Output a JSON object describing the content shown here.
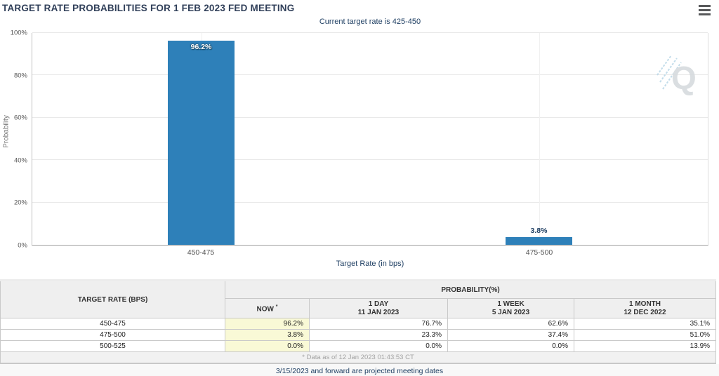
{
  "header": {
    "title": "TARGET RATE PROBABILITIES FOR 1 FEB 2023 FED MEETING"
  },
  "chart": {
    "subtitle": "Current target rate is 425-450",
    "y_axis_label": "Probability",
    "x_axis_label": "Target Rate (in bps)",
    "y_ticks": [
      "0%",
      "20%",
      "40%",
      "60%",
      "80%",
      "100%"
    ],
    "watermark_letter": "Q"
  },
  "chart_data": {
    "type": "bar",
    "title": "TARGET RATE PROBABILITIES FOR 1 FEB 2023 FED MEETING",
    "subtitle": "Current target rate is 425-450",
    "categories": [
      "450-475",
      "475-500"
    ],
    "values": [
      96.2,
      3.8
    ],
    "value_labels": [
      "96.2%",
      "3.8%"
    ],
    "xlabel": "Target Rate (in bps)",
    "ylabel": "Probability",
    "ylim": [
      0,
      100
    ],
    "y_tick_step": 20,
    "grid": true,
    "legend": false,
    "bar_color": "#2e80b9"
  },
  "table": {
    "rate_header": "TARGET RATE (BPS)",
    "group_header": "PROBABILITY(%)",
    "now_header": "NOW",
    "now_footnote_mark": "*",
    "history_columns": [
      {
        "line1": "1 DAY",
        "line2": "11 JAN 2023"
      },
      {
        "line1": "1 WEEK",
        "line2": "5 JAN 2023"
      },
      {
        "line1": "1 MONTH",
        "line2": "12 DEC 2022"
      }
    ],
    "rows": [
      {
        "rate": "450-475",
        "now": "96.2%",
        "day": "76.7%",
        "week": "62.6%",
        "month": "35.1%"
      },
      {
        "rate": "475-500",
        "now": "3.8%",
        "day": "23.3%",
        "week": "37.4%",
        "month": "51.0%"
      },
      {
        "rate": "500-525",
        "now": "0.0%",
        "day": "0.0%",
        "week": "0.0%",
        "month": "13.9%"
      }
    ],
    "footnote": "* Data as of 12 Jan 2023 01:43:53 CT"
  },
  "footer": {
    "note": "3/15/2023 and forward are projected meeting dates"
  },
  "colors": {
    "accent_navy": "#1f3f63",
    "bar_blue": "#2e80b9",
    "now_highlight": "#f9f9d6",
    "header_gray": "#efefef"
  }
}
